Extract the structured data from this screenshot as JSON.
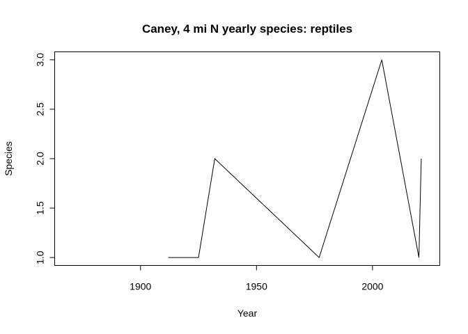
{
  "chart_data": {
    "type": "line",
    "title": "Caney, 4 mi N yearly species: reptiles",
    "xlabel": "Year",
    "ylabel": "Species",
    "xlim": [
      1863,
      2029
    ],
    "ylim": [
      0.92,
      3.08
    ],
    "x_ticks": [
      1900,
      1950,
      2000
    ],
    "y_ticks": [
      1.0,
      1.5,
      2.0,
      2.5,
      3.0
    ],
    "y_tick_labels": [
      "1.0",
      "1.5",
      "2.0",
      "2.5",
      "3.0"
    ],
    "grid": false,
    "legend": "none",
    "series": [
      {
        "x": [
          1912,
          1925,
          1932,
          1977,
          2004,
          2020,
          2021
        ],
        "y": [
          1,
          1,
          2,
          1,
          3,
          1,
          2
        ],
        "color": "#000000"
      }
    ]
  }
}
